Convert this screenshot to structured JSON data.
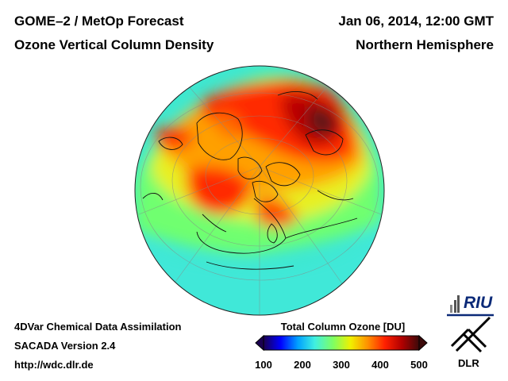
{
  "header": {
    "title_left_1": "GOME–2 / MetOp Forecast",
    "title_left_2": "Ozone Vertical Column Density",
    "title_right_1": "Jan 06, 2014, 12:00 GMT",
    "title_right_2": "Northern Hemisphere"
  },
  "footer": {
    "line1": "4DVar Chemical Data Assimilation",
    "line2": "SACADA Version 2.4",
    "line3": "http://wdc.dlr.de"
  },
  "colorbar": {
    "title": "Total Column Ozone [DU]",
    "ticks": [
      "100",
      "200",
      "300",
      "400",
      "500"
    ],
    "min": 100,
    "max": 500,
    "colors": [
      "#1a0050",
      "#0000ff",
      "#00a0ff",
      "#40f0e0",
      "#80ff60",
      "#f0f000",
      "#ff9000",
      "#ff2000",
      "#b00000",
      "#3c0a0a"
    ]
  },
  "logos": {
    "riu": "RIU",
    "dlr": "DLR"
  }
}
